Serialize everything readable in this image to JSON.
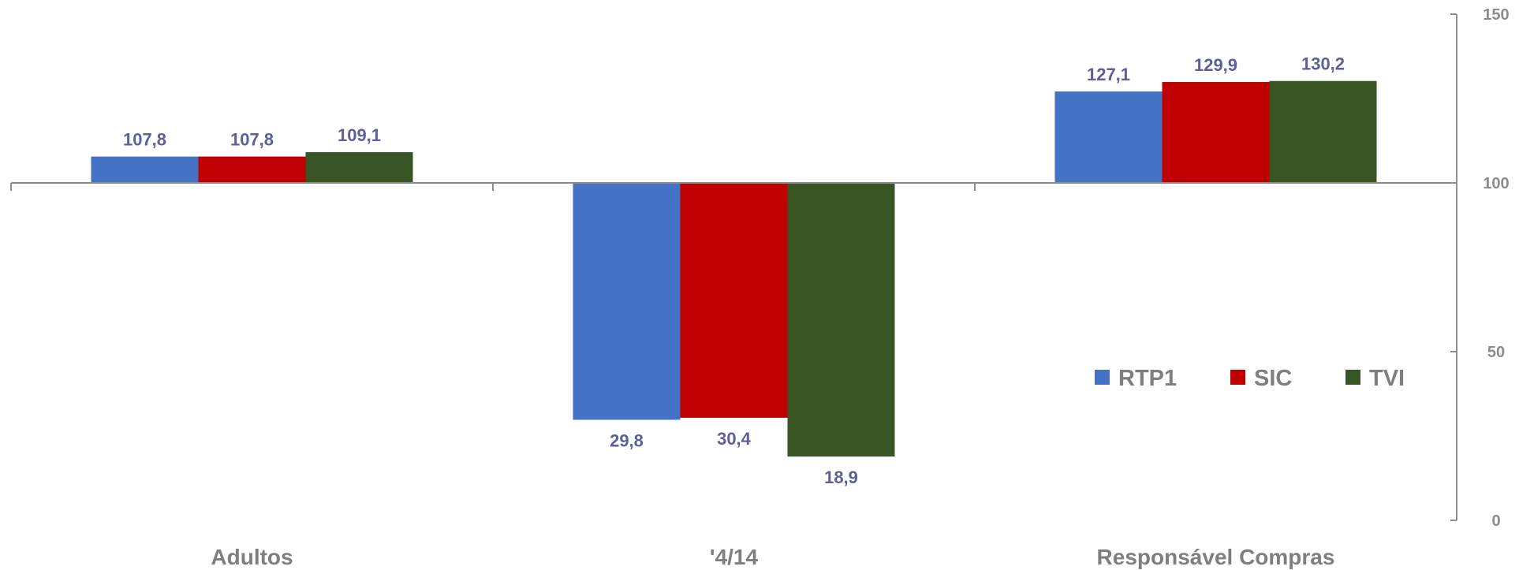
{
  "chart_data": {
    "type": "bar",
    "baseline": 100,
    "categories": [
      "Adultos",
      "'4/14",
      "Responsável Compras"
    ],
    "series": [
      {
        "name": "RTP1",
        "color": "#4472c4",
        "values": [
          107.8,
          29.8,
          127.1
        ],
        "labels": [
          "107,8",
          "29,8",
          "127,1"
        ]
      },
      {
        "name": "SIC",
        "color": "#c00000",
        "values": [
          107.8,
          30.4,
          129.9
        ],
        "labels": [
          "107,8",
          "30,4",
          "129,9"
        ]
      },
      {
        "name": "TVI",
        "color": "#375623",
        "values": [
          109.1,
          18.9,
          130.2
        ],
        "labels": [
          "109,1",
          "18,9",
          "130,2"
        ]
      }
    ],
    "y_axis": {
      "position": "right",
      "ylim": [
        0,
        150
      ],
      "ticks": [
        0,
        50,
        100,
        150
      ],
      "tick_labels": [
        "0",
        "50",
        "100",
        "150"
      ]
    },
    "legend": {
      "placement": "right-middle"
    },
    "grid": false
  }
}
